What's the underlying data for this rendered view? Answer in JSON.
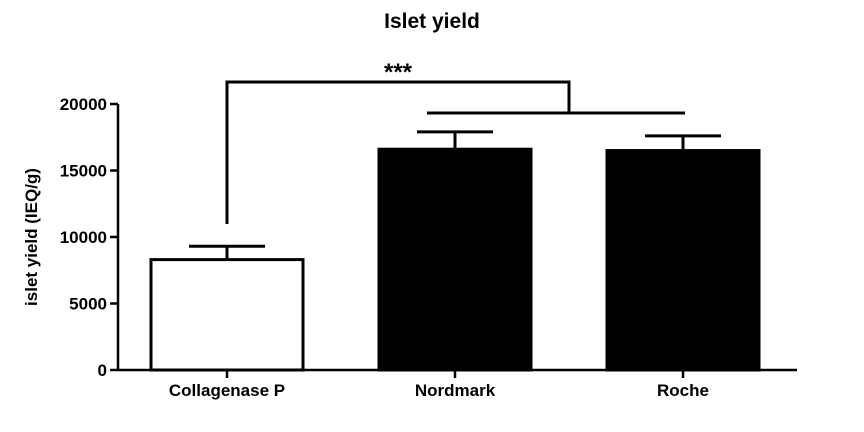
{
  "chart_data": {
    "type": "bar",
    "title": "Islet yield",
    "xlabel": "",
    "ylabel": "islet yield (IEQ/g)",
    "categories": [
      "Collagenase P",
      "Nordmark",
      "Roche"
    ],
    "values": [
      8300,
      16600,
      16500
    ],
    "error_upper": [
      9300,
      17900,
      17600
    ],
    "bar_fill": [
      "#ffffff",
      "#000000",
      "#000000"
    ],
    "ylim": [
      0,
      20000
    ],
    "yticks": [
      0,
      5000,
      10000,
      15000,
      20000
    ],
    "ytick_labels": [
      "0",
      "5000",
      "10000",
      "15000",
      "20000"
    ],
    "grid": false,
    "legend": "none",
    "significance": {
      "label": "***",
      "from": "Collagenase P",
      "to": [
        "Nordmark",
        "Roche"
      ]
    }
  }
}
